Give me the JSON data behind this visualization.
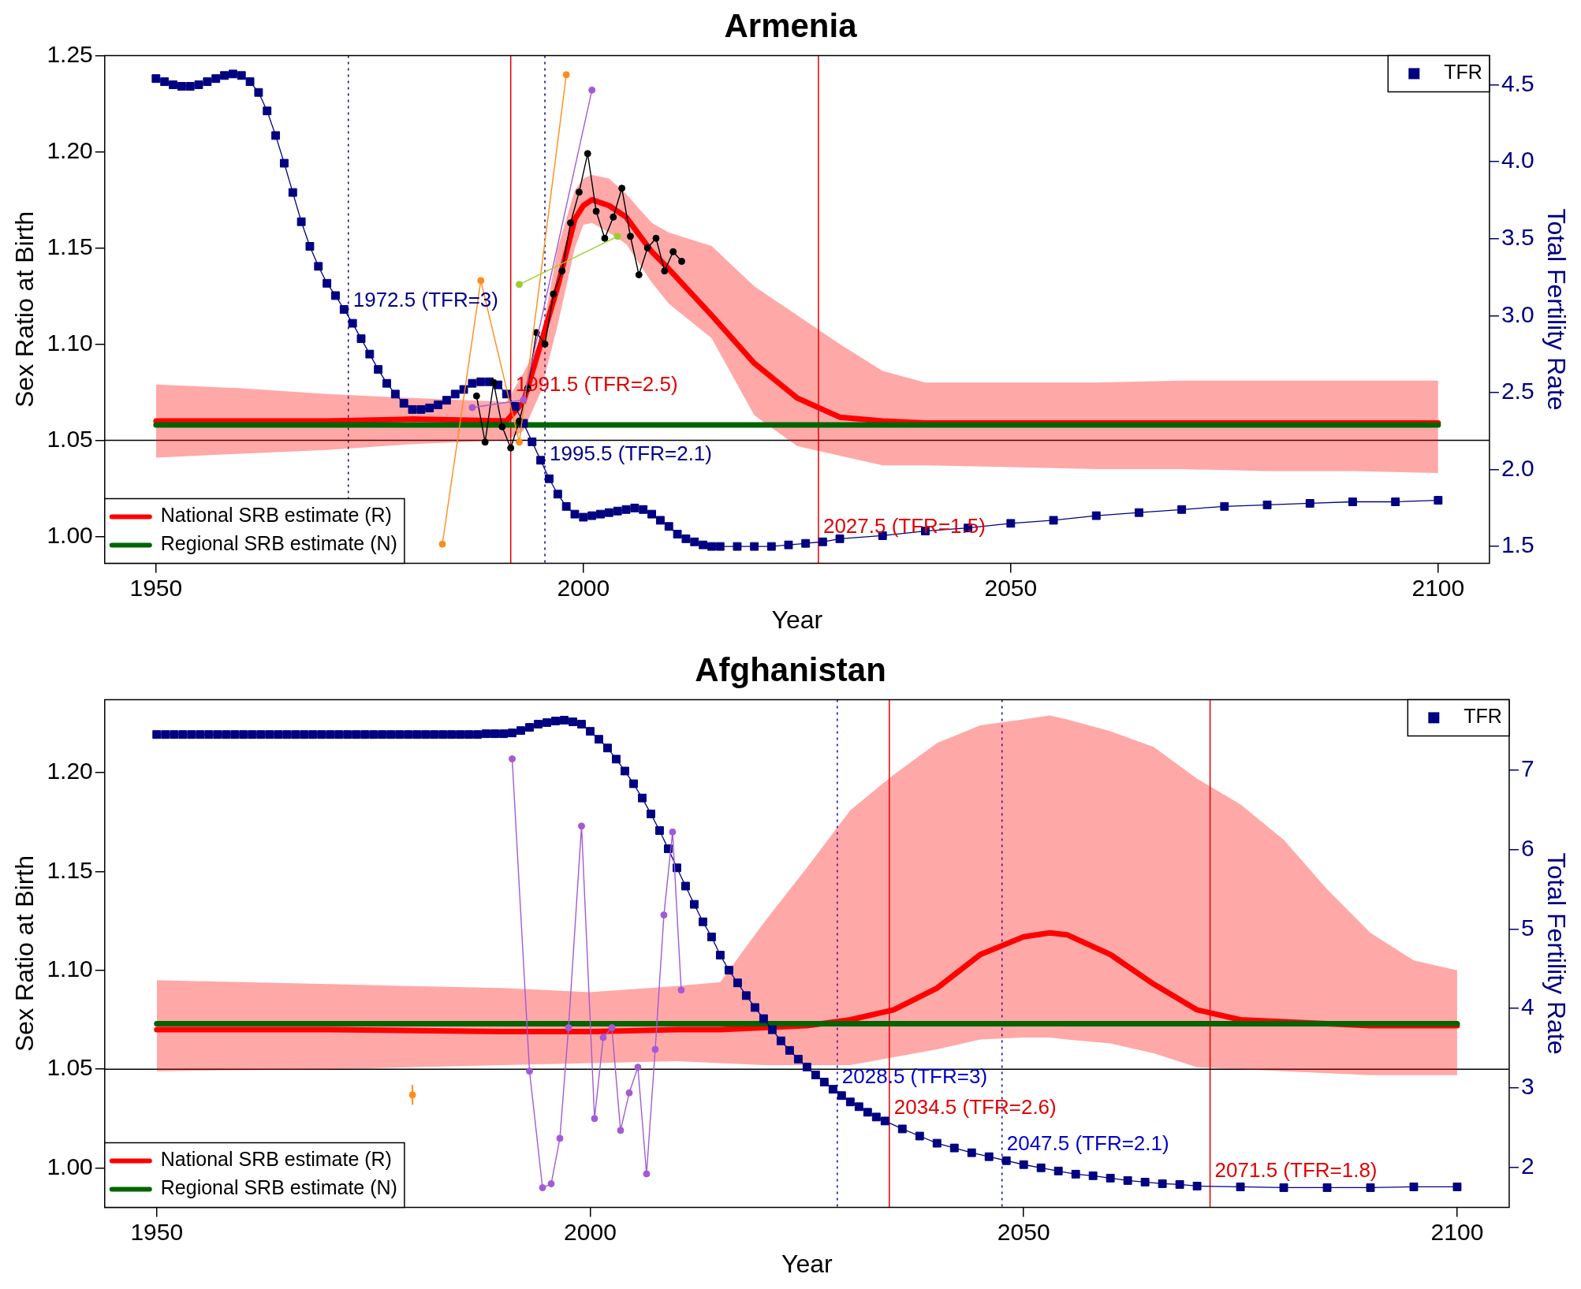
{
  "chart_data": [
    {
      "type": "line",
      "title": "Armenia",
      "xlabel": "Year",
      "ylabel": "Sex Ratio at Birth",
      "y2label": "Total Fertility Rate",
      "xlim": [
        1944,
        2106
      ],
      "xticks": [
        1950,
        2000,
        2050,
        2100
      ],
      "ylim": [
        0.986,
        1.25
      ],
      "yticks": [
        {
          "value": 1,
          "label": "1.00"
        },
        {
          "value": 1.05,
          "label": "1.05"
        },
        {
          "value": 1.1,
          "label": "1.10"
        },
        {
          "value": 1.15,
          "label": "1.15"
        },
        {
          "value": 1.2,
          "label": "1.20"
        },
        {
          "value": 1.25,
          "label": "1.25"
        }
      ],
      "y2lim": [
        1.39,
        4.69
      ],
      "y2ticks": [
        {
          "value": 1.5,
          "label": "1.5"
        },
        {
          "value": 2,
          "label": "2.0"
        },
        {
          "value": 2.5,
          "label": "2.5"
        },
        {
          "value": 3,
          "label": "3.0"
        },
        {
          "value": 3.5,
          "label": "3.5"
        },
        {
          "value": 4,
          "label": "4.0"
        },
        {
          "value": 4.5,
          "label": "4.5"
        }
      ],
      "grid": false,
      "legend": "bottom left",
      "series": [
        {
          "name": "National SRB estimate (R)",
          "color": "#ff0000",
          "marker": "none",
          "x": [
            1950,
            1960,
            1970,
            1980,
            1991,
            1993,
            1995,
            1997,
            1999,
            2000,
            2001,
            2003,
            2005,
            2008,
            2010,
            2015,
            2020,
            2025,
            2030,
            2035,
            2040,
            2050,
            2060,
            2070,
            2080,
            2090,
            2100
          ],
          "values": [
            1.06,
            1.06,
            1.06,
            1.061,
            1.06,
            1.07,
            1.1,
            1.13,
            1.165,
            1.172,
            1.175,
            1.172,
            1.166,
            1.148,
            1.139,
            1.115,
            1.09,
            1.072,
            1.062,
            1.06,
            1.059,
            1.059,
            1.059,
            1.059,
            1.059,
            1.059,
            1.059
          ],
          "lower": [
            1.041,
            1.043,
            1.045,
            1.048,
            1.05,
            1.055,
            1.075,
            1.11,
            1.15,
            1.162,
            1.163,
            1.158,
            1.152,
            1.132,
            1.121,
            1.103,
            1.063,
            1.047,
            1.042,
            1.037,
            1.037,
            1.036,
            1.035,
            1.035,
            1.034,
            1.034,
            1.033
          ],
          "upper": [
            1.079,
            1.077,
            1.074,
            1.072,
            1.07,
            1.085,
            1.102,
            1.15,
            1.18,
            1.186,
            1.188,
            1.186,
            1.178,
            1.163,
            1.158,
            1.151,
            1.13,
            1.115,
            1.1,
            1.086,
            1.08,
            1.08,
            1.08,
            1.081,
            1.081,
            1.081,
            1.081
          ]
        },
        {
          "name": "Regional SRB estimate (N)",
          "color": "#006400",
          "marker": "none",
          "x": [
            1950,
            2100
          ],
          "values": [
            1.058,
            1.058
          ]
        },
        {
          "name": "TFR",
          "color": "#000080",
          "marker": "square",
          "axis": "y2",
          "x": [
            1950,
            1951,
            1952,
            1953,
            1954,
            1955,
            1956,
            1957,
            1958,
            1959,
            1960,
            1961,
            1962,
            1963,
            1964,
            1965,
            1966,
            1967,
            1968,
            1969,
            1970,
            1971,
            1972,
            1973,
            1974,
            1975,
            1976,
            1977,
            1978,
            1979,
            1980,
            1981,
            1982,
            1983,
            1984,
            1985,
            1986,
            1987,
            1988,
            1989,
            1990,
            1991,
            1992,
            1993,
            1994,
            1995,
            1996,
            1997,
            1998,
            1999,
            2000,
            2001,
            2002,
            2003,
            2004,
            2005,
            2006,
            2007,
            2008,
            2009,
            2010,
            2011,
            2012,
            2013,
            2014,
            2015,
            2016,
            2018,
            2020,
            2022,
            2024,
            2026,
            2028,
            2030,
            2035,
            2040,
            2045,
            2050,
            2055,
            2060,
            2065,
            2070,
            2075,
            2080,
            2085,
            2090,
            2095,
            2100
          ],
          "values": [
            4.54,
            4.52,
            4.5,
            4.49,
            4.49,
            4.5,
            4.52,
            4.54,
            4.56,
            4.57,
            4.56,
            4.52,
            4.45,
            4.33,
            4.17,
            3.99,
            3.8,
            3.61,
            3.45,
            3.32,
            3.21,
            3.13,
            3.04,
            2.95,
            2.85,
            2.75,
            2.65,
            2.56,
            2.49,
            2.43,
            2.39,
            2.39,
            2.4,
            2.42,
            2.45,
            2.49,
            2.52,
            2.56,
            2.57,
            2.57,
            2.55,
            2.49,
            2.41,
            2.3,
            2.18,
            2.06,
            1.94,
            1.84,
            1.76,
            1.71,
            1.69,
            1.7,
            1.71,
            1.72,
            1.73,
            1.74,
            1.75,
            1.74,
            1.71,
            1.67,
            1.63,
            1.58,
            1.55,
            1.53,
            1.51,
            1.5,
            1.5,
            1.5,
            1.5,
            1.5,
            1.51,
            1.52,
            1.53,
            1.55,
            1.57,
            1.6,
            1.62,
            1.65,
            1.67,
            1.7,
            1.72,
            1.74,
            1.76,
            1.77,
            1.78,
            1.79,
            1.79,
            1.8
          ]
        },
        {
          "color": "#000000",
          "marker": "circle",
          "x": [
            1987.5,
            1988.5,
            1989.5,
            1990.5,
            1991.5,
            1992.5,
            1993.5,
            1994.5,
            1995.5,
            1996.5,
            1997.5,
            1998.5,
            1999.5,
            2000.5,
            2001.5,
            2002.5,
            2003.5,
            2004.5,
            2005.5,
            2006.5,
            2007.5,
            2008.5,
            2009.5,
            2010.5,
            2011.5
          ],
          "values": [
            1.073,
            1.049,
            1.08,
            1.057,
            1.046,
            1.06,
            1.077,
            1.106,
            1.1,
            1.126,
            1.138,
            1.163,
            1.179,
            1.199,
            1.169,
            1.155,
            1.166,
            1.181,
            1.156,
            1.136,
            1.15,
            1.155,
            1.138,
            1.148,
            1.143
          ]
        },
        {
          "color": "#ff8c1a",
          "marker": "circle",
          "x": [
            1983.5,
            1988,
            1992.5,
            1998
          ],
          "values": [
            0.996,
            1.133,
            1.049,
            1.24
          ]
        },
        {
          "color": "#a35ad6",
          "marker": "circle",
          "x": [
            1987,
            1993,
            2001
          ],
          "values": [
            1.067,
            1.071,
            1.232
          ]
        },
        {
          "color": "#9acd32",
          "marker": "circle",
          "x": [
            1992.5,
            2004
          ],
          "values": [
            1.131,
            1.156
          ]
        }
      ],
      "ref_lines": [
        {
          "axis": "x",
          "value": 1972.5,
          "label": "1972.5 (TFR=3)",
          "color": "#00008b",
          "line_style": "dotted"
        },
        {
          "axis": "x",
          "value": 1991.5,
          "label": "1991.5 (TFR=2.5)",
          "color": "#e00000"
        },
        {
          "axis": "x",
          "value": 1995.5,
          "label": "1995.5 (TFR=2.1)",
          "color": "#00008b",
          "line_style": "dotted"
        },
        {
          "axis": "x",
          "value": 2027.5,
          "label": "2027.5 (TFR=1.5)",
          "color": "#e00000"
        },
        {
          "axis": "y",
          "value": 1.05,
          "color": "#000000"
        }
      ]
    },
    {
      "type": "line",
      "title": "Afghanistan",
      "xlabel": "Year",
      "ylabel": "Sex Ratio at Birth",
      "y2label": "Total Fertility Rate",
      "xlim": [
        1944,
        2106
      ],
      "xticks": [
        1950,
        2000,
        2050,
        2100
      ],
      "ylim": [
        0.98,
        1.237
      ],
      "yticks": [
        {
          "value": 1,
          "label": "1.00"
        },
        {
          "value": 1.05,
          "label": "1.05"
        },
        {
          "value": 1.1,
          "label": "1.10"
        },
        {
          "value": 1.15,
          "label": "1.15"
        },
        {
          "value": 1.2,
          "label": "1.20"
        }
      ],
      "y2lim": [
        1.49,
        7.89
      ],
      "y2ticks": [
        2,
        3,
        4,
        5,
        6,
        7
      ],
      "grid": false,
      "legend": "bottom left",
      "series": [
        {
          "name": "National SRB estimate (R)",
          "color": "#ff0000",
          "marker": "none",
          "x": [
            1950,
            1970,
            1990,
            2000,
            2010,
            2015,
            2020,
            2025,
            2030,
            2035,
            2040,
            2045,
            2050,
            2053,
            2055,
            2060,
            2065,
            2070,
            2075,
            2080,
            2085,
            2090,
            2095,
            2100
          ],
          "values": [
            1.07,
            1.07,
            1.069,
            1.069,
            1.07,
            1.07,
            1.071,
            1.072,
            1.075,
            1.08,
            1.091,
            1.108,
            1.117,
            1.119,
            1.118,
            1.108,
            1.093,
            1.08,
            1.075,
            1.074,
            1.073,
            1.072,
            1.072,
            1.072
          ],
          "lower": [
            1.049,
            1.05,
            1.052,
            1.053,
            1.054,
            1.053,
            1.052,
            1.052,
            1.052,
            1.056,
            1.06,
            1.065,
            1.066,
            1.066,
            1.065,
            1.063,
            1.058,
            1.051,
            1.05,
            1.049,
            1.048,
            1.047,
            1.047,
            1.047
          ],
          "upper": [
            1.095,
            1.093,
            1.091,
            1.089,
            1.092,
            1.094,
            1.124,
            1.152,
            1.181,
            1.199,
            1.215,
            1.224,
            1.227,
            1.229,
            1.227,
            1.221,
            1.213,
            1.197,
            1.184,
            1.166,
            1.141,
            1.119,
            1.105,
            1.1
          ]
        },
        {
          "name": "Regional SRB estimate (N)",
          "color": "#006400",
          "marker": "none",
          "x": [
            1950,
            2100
          ],
          "values": [
            1.073,
            1.073
          ]
        },
        {
          "name": "TFR",
          "color": "#000080",
          "marker": "square",
          "axis": "y2",
          "x": [
            1950,
            1951,
            1952,
            1953,
            1954,
            1955,
            1956,
            1957,
            1958,
            1959,
            1960,
            1961,
            1962,
            1963,
            1964,
            1965,
            1966,
            1967,
            1968,
            1969,
            1970,
            1971,
            1972,
            1973,
            1974,
            1975,
            1976,
            1977,
            1978,
            1979,
            1980,
            1981,
            1982,
            1983,
            1984,
            1985,
            1986,
            1987,
            1988,
            1989,
            1990,
            1991,
            1992,
            1993,
            1994,
            1995,
            1996,
            1997,
            1998,
            1999,
            2000,
            2001,
            2002,
            2003,
            2004,
            2005,
            2006,
            2007,
            2008,
            2009,
            2010,
            2011,
            2012,
            2013,
            2014,
            2015,
            2016,
            2017,
            2018,
            2019,
            2020,
            2021,
            2022,
            2023,
            2024,
            2025,
            2026,
            2027,
            2028,
            2029,
            2030,
            2031,
            2032,
            2033,
            2034,
            2036,
            2038,
            2040,
            2042,
            2044,
            2046,
            2048,
            2050,
            2052,
            2054,
            2056,
            2058,
            2060,
            2062,
            2064,
            2066,
            2068,
            2070,
            2075,
            2080,
            2085,
            2090,
            2095,
            2100
          ],
          "values": [
            7.45,
            7.45,
            7.45,
            7.45,
            7.45,
            7.45,
            7.45,
            7.45,
            7.45,
            7.45,
            7.45,
            7.45,
            7.45,
            7.45,
            7.45,
            7.45,
            7.45,
            7.45,
            7.45,
            7.45,
            7.45,
            7.45,
            7.45,
            7.45,
            7.45,
            7.45,
            7.45,
            7.45,
            7.45,
            7.45,
            7.45,
            7.45,
            7.45,
            7.45,
            7.45,
            7.45,
            7.45,
            7.45,
            7.46,
            7.46,
            7.46,
            7.47,
            7.5,
            7.54,
            7.58,
            7.6,
            7.62,
            7.63,
            7.61,
            7.58,
            7.49,
            7.39,
            7.28,
            7.14,
            6.99,
            6.83,
            6.65,
            6.45,
            6.24,
            6.01,
            5.77,
            5.54,
            5.31,
            5.09,
            4.9,
            4.67,
            4.48,
            4.32,
            4.16,
            4.01,
            3.87,
            3.73,
            3.59,
            3.47,
            3.36,
            3.26,
            3.16,
            3.07,
            2.98,
            2.9,
            2.82,
            2.76,
            2.69,
            2.63,
            2.58,
            2.48,
            2.39,
            2.3,
            2.24,
            2.18,
            2.13,
            2.08,
            2.03,
            1.99,
            1.95,
            1.91,
            1.89,
            1.86,
            1.83,
            1.81,
            1.79,
            1.78,
            1.76,
            1.75,
            1.74,
            1.74,
            1.74,
            1.75,
            1.75
          ]
        },
        {
          "color": "#a35ad6",
          "marker": "circle",
          "x": [
            1991,
            1993,
            1994.5,
            1995.5,
            1996.5,
            1997.5,
            1999,
            2000.5,
            2001.5,
            2002.5,
            2003.5,
            2004.5,
            2005.5,
            2006.5,
            2007.5,
            2008.5,
            2009.5,
            2010.5
          ],
          "values": [
            1.207,
            1.049,
            0.99,
            0.992,
            1.015,
            1.071,
            1.173,
            1.025,
            1.066,
            1.071,
            1.019,
            1.038,
            1.051,
            0.997,
            1.06,
            1.128,
            1.17,
            1.09
          ]
        },
        {
          "type": "scatter",
          "color": "#ff8c1a",
          "marker": "circle",
          "x": [
            1979.5
          ],
          "values": [
            1.037
          ],
          "errors": [
            [
              1.032,
              1.042
            ]
          ]
        }
      ],
      "ref_lines": [
        {
          "axis": "x",
          "value": 2028.5,
          "label": "2028.5 (TFR=3)",
          "color": "#0000cc",
          "line_style": "dotted"
        },
        {
          "axis": "x",
          "value": 2034.5,
          "label": "2034.5 (TFR=2.6)",
          "color": "#e00000"
        },
        {
          "axis": "x",
          "value": 2047.5,
          "label": "2047.5 (TFR=2.1)",
          "color": "#0000cc",
          "line_style": "dotted"
        },
        {
          "axis": "x",
          "value": 2071.5,
          "label": "2071.5 (TFR=1.8)",
          "color": "#e00000"
        },
        {
          "axis": "y",
          "value": 1.05,
          "color": "#000000"
        }
      ]
    }
  ]
}
